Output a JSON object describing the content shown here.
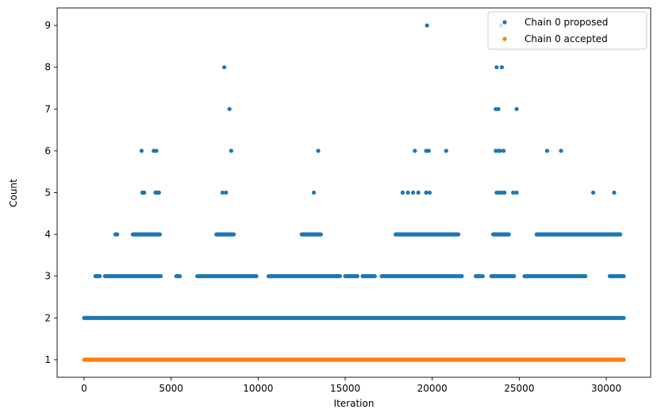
{
  "chart_data": {
    "type": "scatter",
    "title": "",
    "xlabel": "Iteration",
    "ylabel": "Count",
    "xlim": [
      -1550,
      32550
    ],
    "ylim": [
      0.58,
      9.42
    ],
    "x_ticks": [
      0,
      5000,
      10000,
      15000,
      20000,
      25000,
      30000
    ],
    "y_ticks": [
      1,
      2,
      3,
      4,
      5,
      6,
      7,
      8,
      9
    ],
    "grid": false,
    "legend_position": "top-right",
    "x_max": 31000,
    "series": [
      {
        "name": "Chain 0 proposed",
        "color": "#1f77b4",
        "points": [
          {
            "x": 8050,
            "y": 8
          },
          {
            "x": 19700,
            "y": 9
          },
          {
            "x": 23950,
            "y": 9
          },
          {
            "x": 23700,
            "y": 8
          },
          {
            "x": 24000,
            "y": 8
          },
          {
            "x": 8350,
            "y": 7
          },
          {
            "x": 23650,
            "y": 7
          },
          {
            "x": 23800,
            "y": 7
          },
          {
            "x": 24850,
            "y": 7
          },
          {
            "x": 3300,
            "y": 6
          },
          {
            "x": 4000,
            "y": 6
          },
          {
            "x": 4150,
            "y": 6
          },
          {
            "x": 8450,
            "y": 6
          },
          {
            "x": 13450,
            "y": 6
          },
          {
            "x": 19000,
            "y": 6
          },
          {
            "x": 19650,
            "y": 6
          },
          {
            "x": 19800,
            "y": 6
          },
          {
            "x": 20800,
            "y": 6
          },
          {
            "x": 23650,
            "y": 6
          },
          {
            "x": 23800,
            "y": 6
          },
          {
            "x": 23900,
            "y": 6
          },
          {
            "x": 24100,
            "y": 6
          },
          {
            "x": 26600,
            "y": 6
          },
          {
            "x": 27400,
            "y": 6
          },
          {
            "x": 3350,
            "y": 5
          },
          {
            "x": 3450,
            "y": 5
          },
          {
            "x": 4100,
            "y": 5
          },
          {
            "x": 4200,
            "y": 5
          },
          {
            "x": 4300,
            "y": 5
          },
          {
            "x": 7950,
            "y": 5
          },
          {
            "x": 8150,
            "y": 5
          },
          {
            "x": 13200,
            "y": 5
          },
          {
            "x": 18300,
            "y": 5
          },
          {
            "x": 18600,
            "y": 5
          },
          {
            "x": 18900,
            "y": 5
          },
          {
            "x": 19200,
            "y": 5
          },
          {
            "x": 19650,
            "y": 5
          },
          {
            "x": 19850,
            "y": 5
          },
          {
            "x": 23700,
            "y": 5
          },
          {
            "x": 23850,
            "y": 5
          },
          {
            "x": 24000,
            "y": 5
          },
          {
            "x": 24150,
            "y": 5
          },
          {
            "x": 24650,
            "y": 5
          },
          {
            "x": 24850,
            "y": 5
          },
          {
            "x": 29250,
            "y": 5
          },
          {
            "x": 30450,
            "y": 5
          }
        ],
        "bands": [
          {
            "y": 4,
            "ranges": [
              [
                1800,
                1900
              ],
              [
                2800,
                4350
              ],
              [
                7600,
                8600
              ],
              [
                12500,
                13600
              ],
              [
                17900,
                21500
              ],
              [
                23500,
                24400
              ],
              [
                26000,
                30800
              ]
            ]
          },
          {
            "y": 3,
            "ranges": [
              [
                650,
                900
              ],
              [
                1200,
                4400
              ],
              [
                5300,
                5500
              ],
              [
                6500,
                9900
              ],
              [
                10600,
                14700
              ],
              [
                15000,
                15700
              ],
              [
                16000,
                16700
              ],
              [
                17100,
                21700
              ],
              [
                22500,
                22900
              ],
              [
                23400,
                24700
              ],
              [
                25300,
                28800
              ],
              [
                30200,
                31000
              ]
            ]
          },
          {
            "y": 2,
            "ranges": [
              [
                0,
                31000
              ]
            ]
          }
        ]
      },
      {
        "name": "Chain 0 accepted",
        "color": "#ff7f0e",
        "bands": [
          {
            "y": 1,
            "ranges": [
              [
                0,
                31000
              ]
            ]
          }
        ]
      }
    ]
  }
}
